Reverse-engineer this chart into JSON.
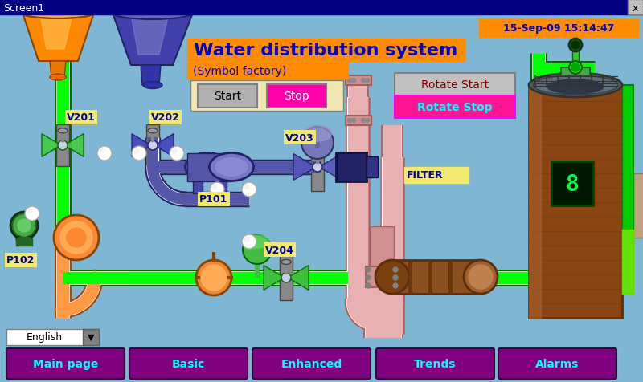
{
  "title_bar_color": "#000080",
  "title_bar_text": "Screen1",
  "title_bar_text_color": "#ffffff",
  "close_btn_text": "x",
  "bg_color": "#7eb6d4",
  "main_title": "Water distribution system",
  "main_title_color": "#ff8c00",
  "main_title_fontsize": 16,
  "subtitle": "(Symbol factory)",
  "subtitle_color": "#ff8c00",
  "subtitle_fontsize": 10,
  "datetime_box_color": "#ff8c00",
  "datetime_text": "15-Sep-09 15:14:47",
  "datetime_text_color": "#0000cc",
  "start_stop_box_color": "#f0e8b0",
  "start_btn_color": "#b0b0b0",
  "start_btn_text": "Start",
  "stop_btn_color": "#ff00aa",
  "stop_btn_text": "Stop",
  "rotate_start_box_color": "#c0c0c0",
  "rotate_start_text": "Rotate Start",
  "rotate_start_text_color": "#800000",
  "rotate_stop_box_color": "#ff1493",
  "rotate_stop_text": "Rotate Stop",
  "rotate_stop_text_color": "#00ffff",
  "nav_btn_color": "#800080",
  "nav_btn_text_color": "#00ffff",
  "nav_btns": [
    "Main page",
    "Basic",
    "Enhanced",
    "Trends",
    "Alarms"
  ],
  "nav_btn_fontsize": 10,
  "filter_label": "FILTER",
  "filter_label_color": "#0000aa",
  "filter_box_color": "#f0e870",
  "pipe_green_color": "#00ff00",
  "pipe_green_dark": "#006600",
  "pipe_pink_color": "#e8b0b0",
  "pipe_pink_dark": "#b06060",
  "pipe_orange_color": "#ff9944",
  "pipe_orange_dark": "#aa4400",
  "valve_label_color": "#0000aa",
  "valve_label_bg": "#f0e870",
  "pump_label_color": "#0000aa",
  "pump_label_bg": "#f0e870"
}
